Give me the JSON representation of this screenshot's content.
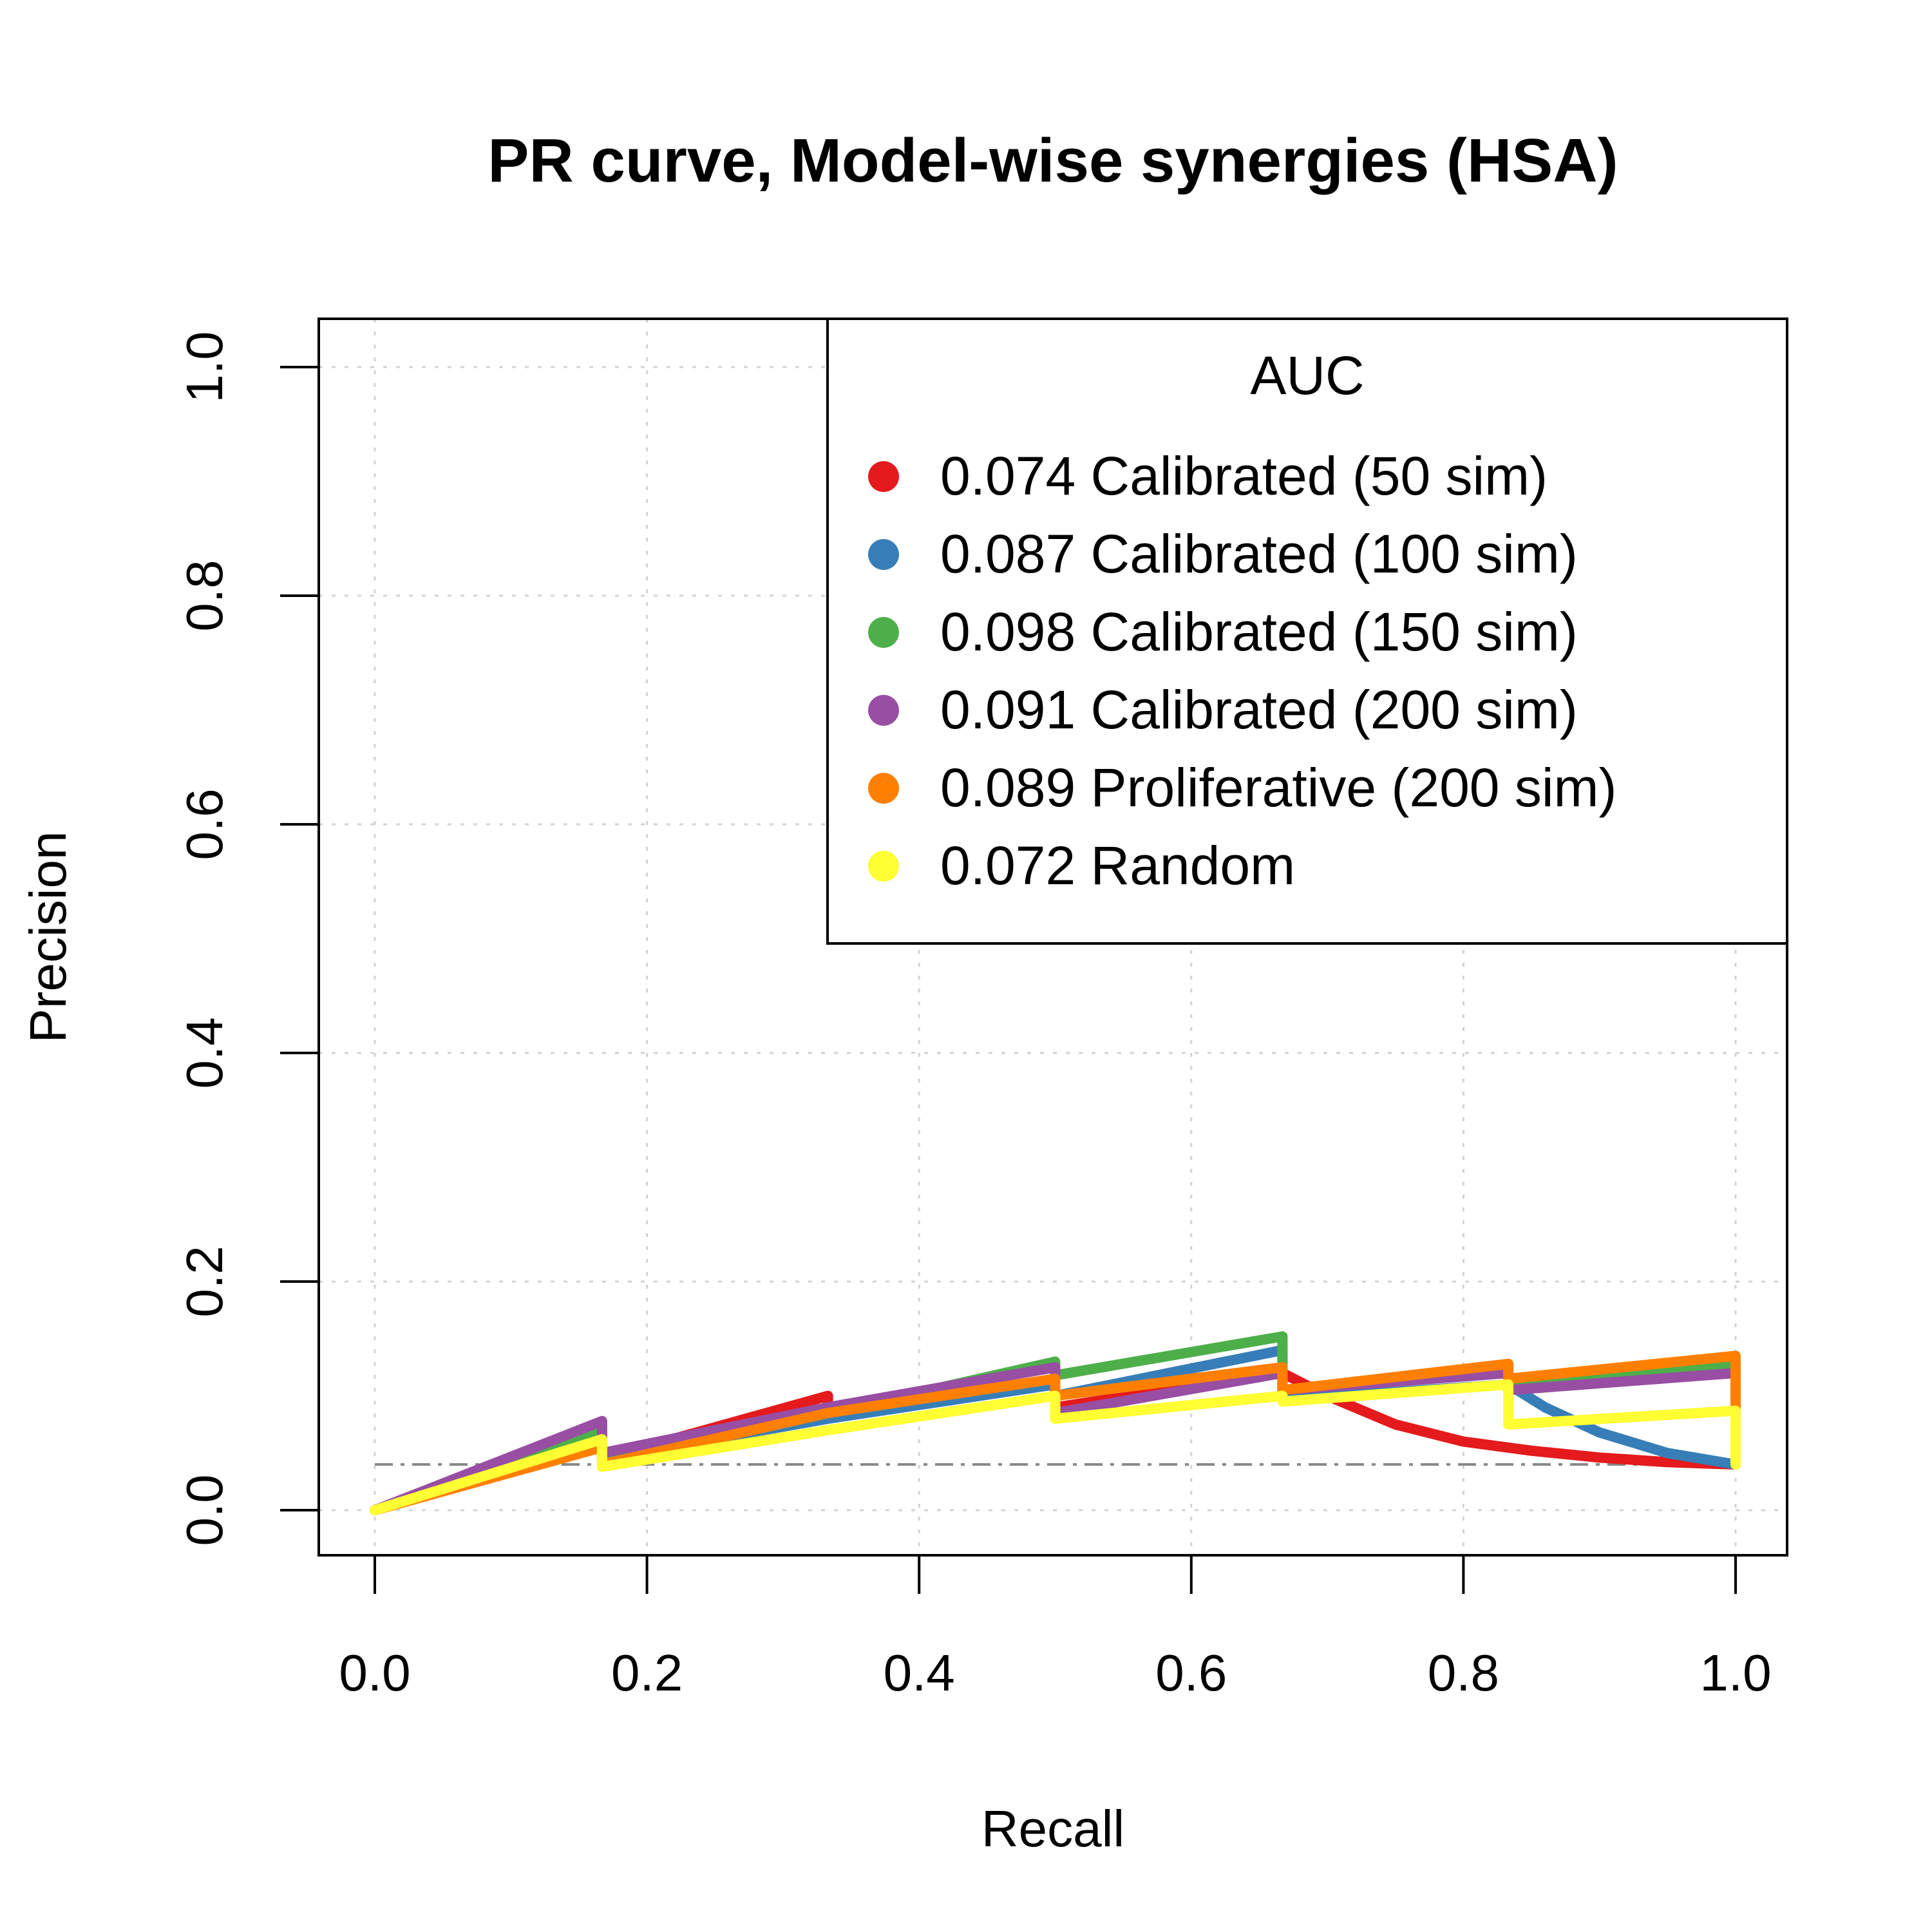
{
  "chart_data": {
    "type": "line",
    "title": "PR curve, Model-wise synergies (HSA)",
    "xlabel": "Recall",
    "ylabel": "Precision",
    "xlim": [
      0,
      1
    ],
    "ylim": [
      0,
      1
    ],
    "xticks": [
      "0.0",
      "0.2",
      "0.4",
      "0.6",
      "0.8",
      "1.0"
    ],
    "yticks": [
      "0.0",
      "0.2",
      "0.4",
      "0.6",
      "0.8",
      "1.0"
    ],
    "grid": true,
    "legend_title": "AUC",
    "legend_position": "top-right",
    "baseline": {
      "y": 0.04,
      "style": "dash-dot",
      "color": "#888888"
    },
    "series": [
      {
        "name": "0.074 Calibrated (50 sim)",
        "color": "#e41a1c",
        "points": [
          [
            0,
            0
          ],
          [
            0.167,
            0.06
          ],
          [
            0.167,
            0.045
          ],
          [
            0.333,
            0.1
          ],
          [
            0.333,
            0.085
          ],
          [
            0.5,
            0.11
          ],
          [
            0.5,
            0.09
          ],
          [
            0.667,
            0.12
          ],
          [
            0.7,
            0.1
          ],
          [
            0.75,
            0.075
          ],
          [
            0.8,
            0.06
          ],
          [
            0.85,
            0.052
          ],
          [
            0.9,
            0.046
          ],
          [
            0.95,
            0.042
          ],
          [
            1.0,
            0.04
          ]
        ]
      },
      {
        "name": "0.087 Calibrated (100 sim)",
        "color": "#377eb8",
        "points": [
          [
            0,
            0
          ],
          [
            0.167,
            0.06
          ],
          [
            0.167,
            0.045
          ],
          [
            0.333,
            0.08
          ],
          [
            0.5,
            0.11
          ],
          [
            0.5,
            0.1
          ],
          [
            0.667,
            0.14
          ],
          [
            0.667,
            0.097
          ],
          [
            0.833,
            0.11
          ],
          [
            0.86,
            0.09
          ],
          [
            0.9,
            0.068
          ],
          [
            0.95,
            0.05
          ],
          [
            1.0,
            0.04
          ]
        ]
      },
      {
        "name": "0.098 Calibrated (150 sim)",
        "color": "#4daf4a",
        "points": [
          [
            0,
            0
          ],
          [
            0.167,
            0.07
          ],
          [
            0.167,
            0.048
          ],
          [
            0.333,
            0.085
          ],
          [
            0.5,
            0.13
          ],
          [
            0.5,
            0.118
          ],
          [
            0.667,
            0.152
          ],
          [
            0.667,
            0.105
          ],
          [
            0.833,
            0.125
          ],
          [
            0.833,
            0.11
          ],
          [
            1.0,
            0.128
          ],
          [
            1.0,
            0.04
          ]
        ]
      },
      {
        "name": "0.091 Calibrated (200 sim)",
        "color": "#984ea3",
        "points": [
          [
            0,
            0
          ],
          [
            0.167,
            0.078
          ],
          [
            0.167,
            0.05
          ],
          [
            0.333,
            0.09
          ],
          [
            0.5,
            0.125
          ],
          [
            0.5,
            0.085
          ],
          [
            0.667,
            0.12
          ],
          [
            0.667,
            0.105
          ],
          [
            0.833,
            0.12
          ],
          [
            0.833,
            0.105
          ],
          [
            1.0,
            0.12
          ],
          [
            1.0,
            0.04
          ]
        ]
      },
      {
        "name": "0.089 Proliferative (200 sim)",
        "color": "#ff7f00",
        "points": [
          [
            0,
            0
          ],
          [
            0.167,
            0.055
          ],
          [
            0.167,
            0.04
          ],
          [
            0.333,
            0.085
          ],
          [
            0.5,
            0.115
          ],
          [
            0.5,
            0.1
          ],
          [
            0.667,
            0.125
          ],
          [
            0.667,
            0.105
          ],
          [
            0.833,
            0.128
          ],
          [
            0.833,
            0.115
          ],
          [
            1.0,
            0.135
          ],
          [
            1.0,
            0.04
          ]
        ]
      },
      {
        "name": "0.072 Random",
        "color": "#ffff33",
        "points": [
          [
            0,
            0
          ],
          [
            0.167,
            0.062
          ],
          [
            0.167,
            0.038
          ],
          [
            0.333,
            0.07
          ],
          [
            0.5,
            0.1
          ],
          [
            0.5,
            0.08
          ],
          [
            0.667,
            0.1
          ],
          [
            0.667,
            0.095
          ],
          [
            0.833,
            0.11
          ],
          [
            0.833,
            0.075
          ],
          [
            1.0,
            0.087
          ],
          [
            1.0,
            0.04
          ]
        ]
      }
    ]
  }
}
